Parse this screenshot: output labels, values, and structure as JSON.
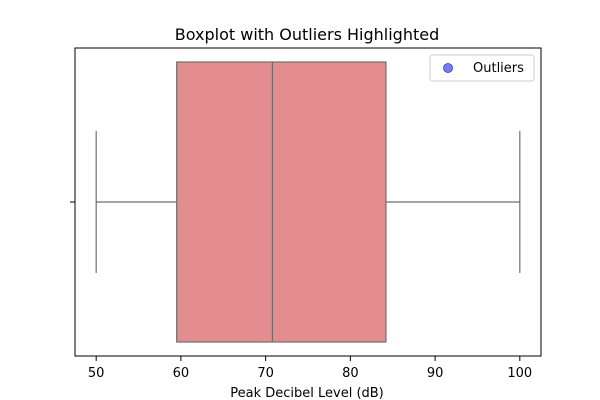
{
  "chart_data": {
    "type": "boxplot",
    "orientation": "horizontal",
    "title": "Boxplot with Outliers Highlighted",
    "xlabel": "Peak Decibel Level (dB)",
    "ylabel": "",
    "xlim": [
      47.5,
      102.5
    ],
    "xticks": [
      50,
      60,
      70,
      80,
      90,
      100
    ],
    "xtick_labels": [
      "50",
      "60",
      "70",
      "80",
      "90",
      "100"
    ],
    "box": {
      "whisker_low": 50,
      "q1": 59.5,
      "median": 70.8,
      "q3": 84.2,
      "whisker_high": 100
    },
    "outliers": [],
    "box_color": "#e48d8f",
    "line_color": "#6e6e6e",
    "outlier_color": "#5a5aee",
    "grid": false,
    "legend": {
      "placement": "top-right",
      "entries": [
        {
          "label": "Outliers",
          "marker_color": "#5a5aee"
        }
      ]
    }
  }
}
